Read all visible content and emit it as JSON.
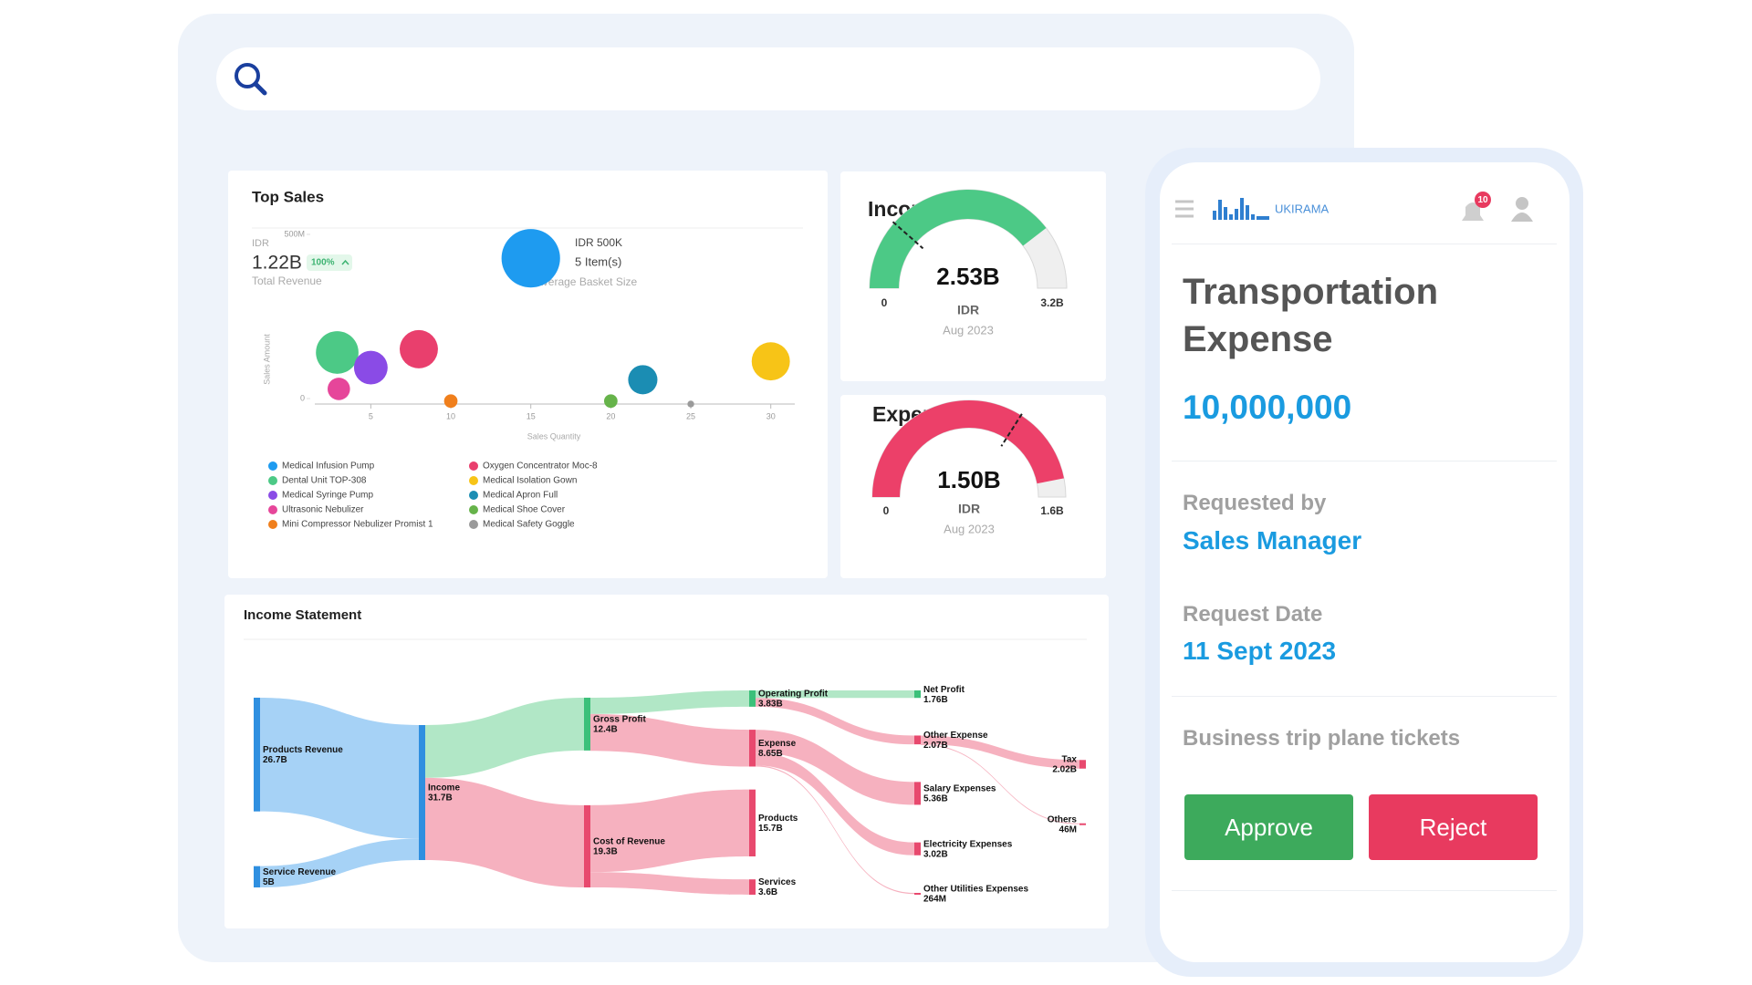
{
  "top_sales": {
    "title": "Top Sales",
    "total_revenue": {
      "currency": "IDR",
      "value": "1.22B",
      "change": "100%",
      "label": "Total Revenue"
    },
    "average_basket": {
      "amount": "IDR 500K",
      "items": "5 Item(s)",
      "label": "Average Basket Size"
    },
    "chart": {
      "type": "scatter",
      "xlabel": "Sales Quantity",
      "ylabel": "Sales Amount",
      "xlim": [
        1.5,
        31.5
      ],
      "ylim": [
        0,
        600000000
      ],
      "xticks": [
        5,
        10,
        15,
        20,
        25,
        30
      ],
      "yticks": [
        0,
        {
          "value": 500000000,
          "label": "500M"
        }
      ],
      "series": [
        {
          "name": "Medical Infusion Pump",
          "color": "#1e9bf0",
          "x": 15,
          "y": 444000000,
          "size": 680
        },
        {
          "name": "Dental Unit TOP-308",
          "color": "#4cc986",
          "x": 2.9,
          "y": 157000000,
          "size": 360
        },
        {
          "name": "Medical Syringe Pump",
          "color": "#8a4be6",
          "x": 5,
          "y": 111000000,
          "size": 225
        },
        {
          "name": "Ultrasonic Nebulizer",
          "color": "#e6469a",
          "x": 3,
          "y": 46000000,
          "size": 100
        },
        {
          "name": "Mini Compressor Nebulizer Promist 1",
          "color": "#f07f1c",
          "x": 10,
          "y": 9000000,
          "size": 36
        },
        {
          "name": "Oxygen Concentrator Moc-8",
          "color": "#e93f6d",
          "x": 8,
          "y": 167000000,
          "size": 290
        },
        {
          "name": "Medical Isolation Gown",
          "color": "#f7c417",
          "x": 30,
          "y": 130000000,
          "size": 290
        },
        {
          "name": "Medical Apron Full",
          "color": "#1b8db3",
          "x": 22,
          "y": 74000000,
          "size": 170
        },
        {
          "name": "Medical Shoe Cover",
          "color": "#66b34a",
          "x": 20,
          "y": 9000000,
          "size": 36
        },
        {
          "name": "Medical Safety Goggle",
          "color": "#9a9a9a",
          "x": 25,
          "y": 0,
          "size": 9
        }
      ]
    }
  },
  "income": {
    "type": "gauge",
    "title": "Income",
    "value": 2.53,
    "value_label": "2.53B",
    "unit": "IDR",
    "period": "Aug 2023",
    "min": 0,
    "max": {
      "value": 3.2,
      "label": "3.2B"
    },
    "color": "#4cc986"
  },
  "expense": {
    "type": "gauge",
    "title": "Expense",
    "value": 1.5,
    "value_label": "1.50B",
    "unit": "IDR",
    "period": "Aug 2023",
    "min": 0,
    "max": {
      "value": 1.6,
      "label": "1.6B"
    },
    "color": "#ec4069"
  },
  "income_statement": {
    "type": "sankey",
    "title": "Income Statement",
    "nodes": [
      {
        "name": "Products Revenue",
        "value": 26.7,
        "value_label": "26.7B",
        "color": "#2f8fe0"
      },
      {
        "name": "Service Revenue",
        "value": 5,
        "value_label": "5B",
        "color": "#2f8fe0"
      },
      {
        "name": "Income",
        "value": 31.7,
        "value_label": "31.7B",
        "color": "#2f8fe0"
      },
      {
        "name": "Gross Profit",
        "value": 12.4,
        "value_label": "12.4B",
        "color": "#3cc07a"
      },
      {
        "name": "Cost of Revenue",
        "value": 19.3,
        "value_label": "19.3B",
        "color": "#e8496e"
      },
      {
        "name": "Operating Profit",
        "value": 3.83,
        "value_label": "3.83B",
        "color": "#3cc07a"
      },
      {
        "name": "Expense",
        "value": 8.65,
        "value_label": "8.65B",
        "color": "#e8496e"
      },
      {
        "name": "Products",
        "value": 15.7,
        "value_label": "15.7B",
        "color": "#e8496e"
      },
      {
        "name": "Services",
        "value": 3.6,
        "value_label": "3.6B",
        "color": "#e8496e"
      },
      {
        "name": "Net Profit",
        "value": 1.76,
        "value_label": "1.76B",
        "color": "#3cc07a"
      },
      {
        "name": "Other Expense",
        "value": 2.07,
        "value_label": "2.07B",
        "color": "#e8496e"
      },
      {
        "name": "Salary Expenses",
        "value": 5.36,
        "value_label": "5.36B",
        "color": "#e8496e"
      },
      {
        "name": "Electricity Expenses",
        "value": 3.02,
        "value_label": "3.02B",
        "color": "#e8496e"
      },
      {
        "name": "Other Utilities Expenses",
        "value": 0.264,
        "value_label": "264M",
        "color": "#e8496e"
      },
      {
        "name": "Tax",
        "value": 2.02,
        "value_label": "2.02B",
        "color": "#e8496e"
      },
      {
        "name": "Others",
        "value": 0.046,
        "value_label": "46M",
        "color": "#e8496e"
      }
    ],
    "links": [
      {
        "source": 0,
        "target": 2,
        "value": 26.7,
        "color": "#9ccdf5"
      },
      {
        "source": 1,
        "target": 2,
        "value": 5,
        "color": "#9ccdf5"
      },
      {
        "source": 2,
        "target": 3,
        "value": 12.4,
        "color": "#a9e4c0"
      },
      {
        "source": 2,
        "target": 4,
        "value": 19.3,
        "color": "#f5a8b8"
      },
      {
        "source": 3,
        "target": 5,
        "value": 3.83,
        "color": "#a9e4c0"
      },
      {
        "source": 3,
        "target": 6,
        "value": 8.65,
        "color": "#f5a8b8"
      },
      {
        "source": 4,
        "target": 7,
        "value": 15.7,
        "color": "#f5a8b8"
      },
      {
        "source": 4,
        "target": 8,
        "value": 3.6,
        "color": "#f5a8b8"
      },
      {
        "source": 5,
        "target": 9,
        "value": 1.76,
        "color": "#a9e4c0"
      },
      {
        "source": 5,
        "target": 10,
        "value": 2.07,
        "color": "#f5a8b8"
      },
      {
        "source": 6,
        "target": 11,
        "value": 5.36,
        "color": "#f5a8b8"
      },
      {
        "source": 6,
        "target": 12,
        "value": 3.02,
        "color": "#f5a8b8"
      },
      {
        "source": 6,
        "target": 13,
        "value": 0.264,
        "color": "#f5a8b8"
      },
      {
        "source": 10,
        "target": 14,
        "value": 2.02,
        "color": "#f5a8b8"
      },
      {
        "source": 10,
        "target": 15,
        "value": 0.046,
        "color": "#f5a8b8"
      }
    ]
  },
  "approval": {
    "brand": "UKIRAMA",
    "notifications": "10",
    "title": "Transportation Expense",
    "amount": "10,000,000",
    "requested_by_label": "Requested by",
    "requested_by": "Sales Manager",
    "request_date_label": "Request Date",
    "request_date": "11 Sept 2023",
    "description": "Business trip plane tickets",
    "actions": [
      "Approve",
      "Reject"
    ]
  }
}
